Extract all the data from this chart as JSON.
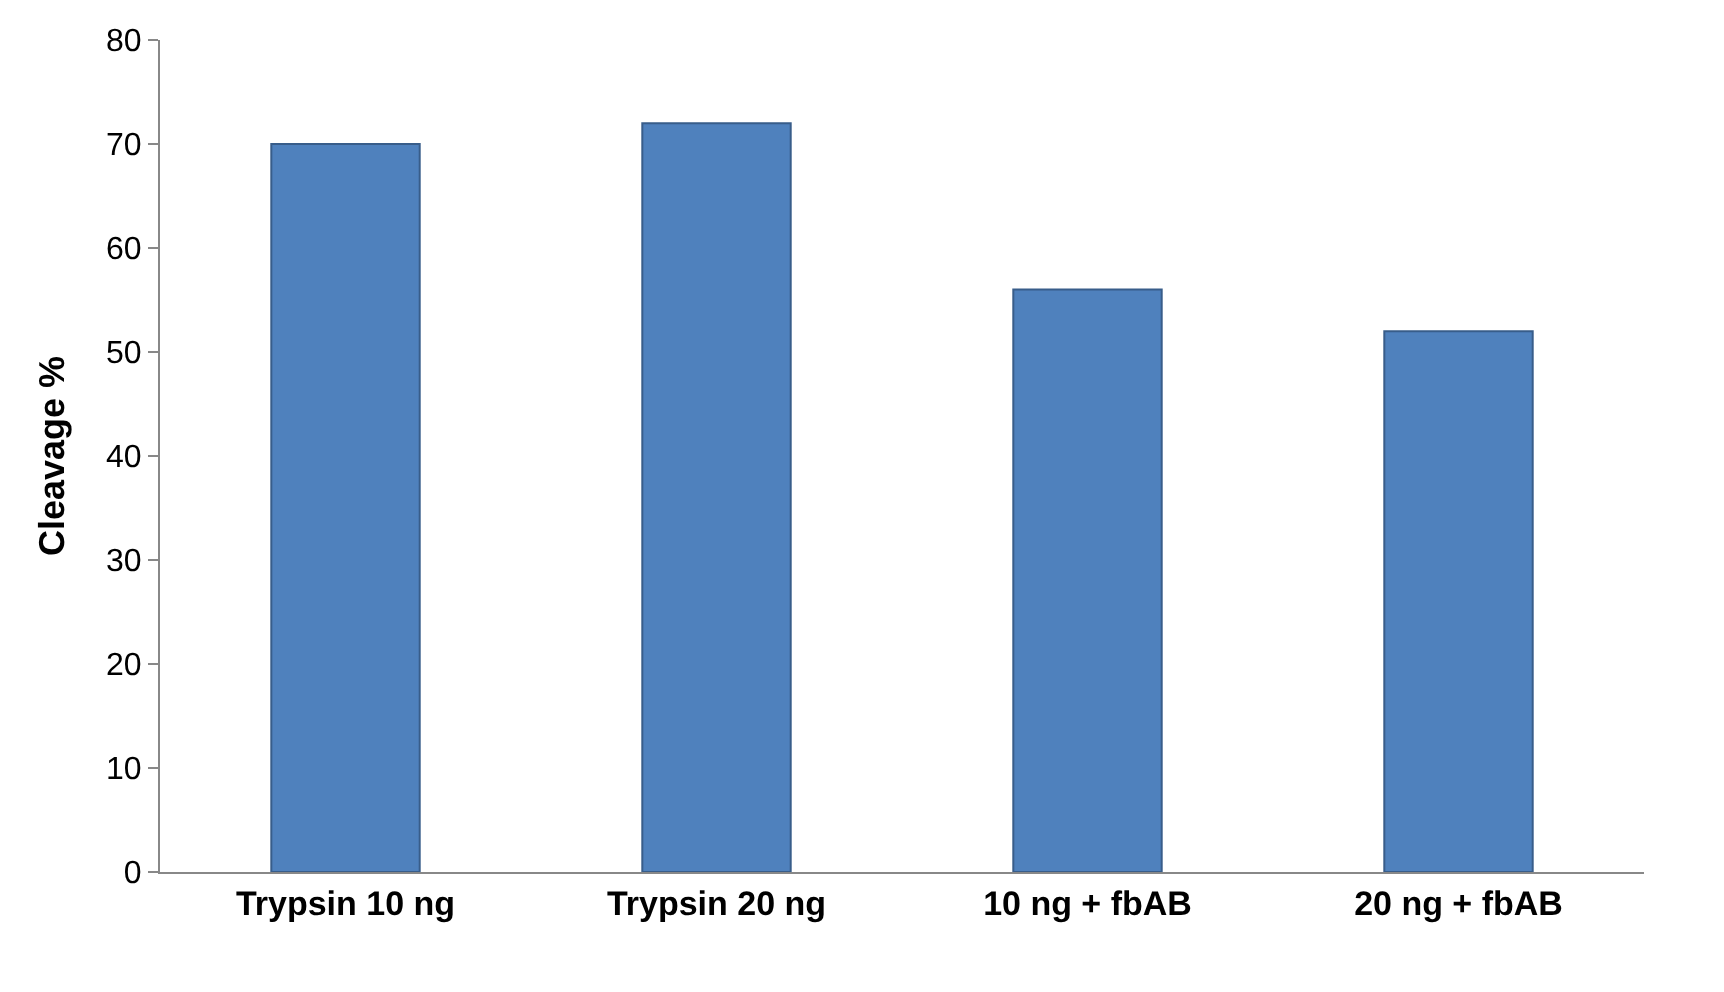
{
  "chart_data": {
    "type": "bar",
    "ylabel": "Cleavage %",
    "categories": [
      "Trypsin 10 ng",
      "Trypsin 20 ng",
      "10 ng + fbAB",
      "20 ng + fbAB"
    ],
    "values": [
      70,
      72,
      56,
      52
    ],
    "color": "#4f81bd",
    "ylim": [
      0,
      80
    ],
    "yticks": [
      0,
      10,
      20,
      30,
      40,
      50,
      60,
      70,
      80
    ],
    "legend": false
  }
}
